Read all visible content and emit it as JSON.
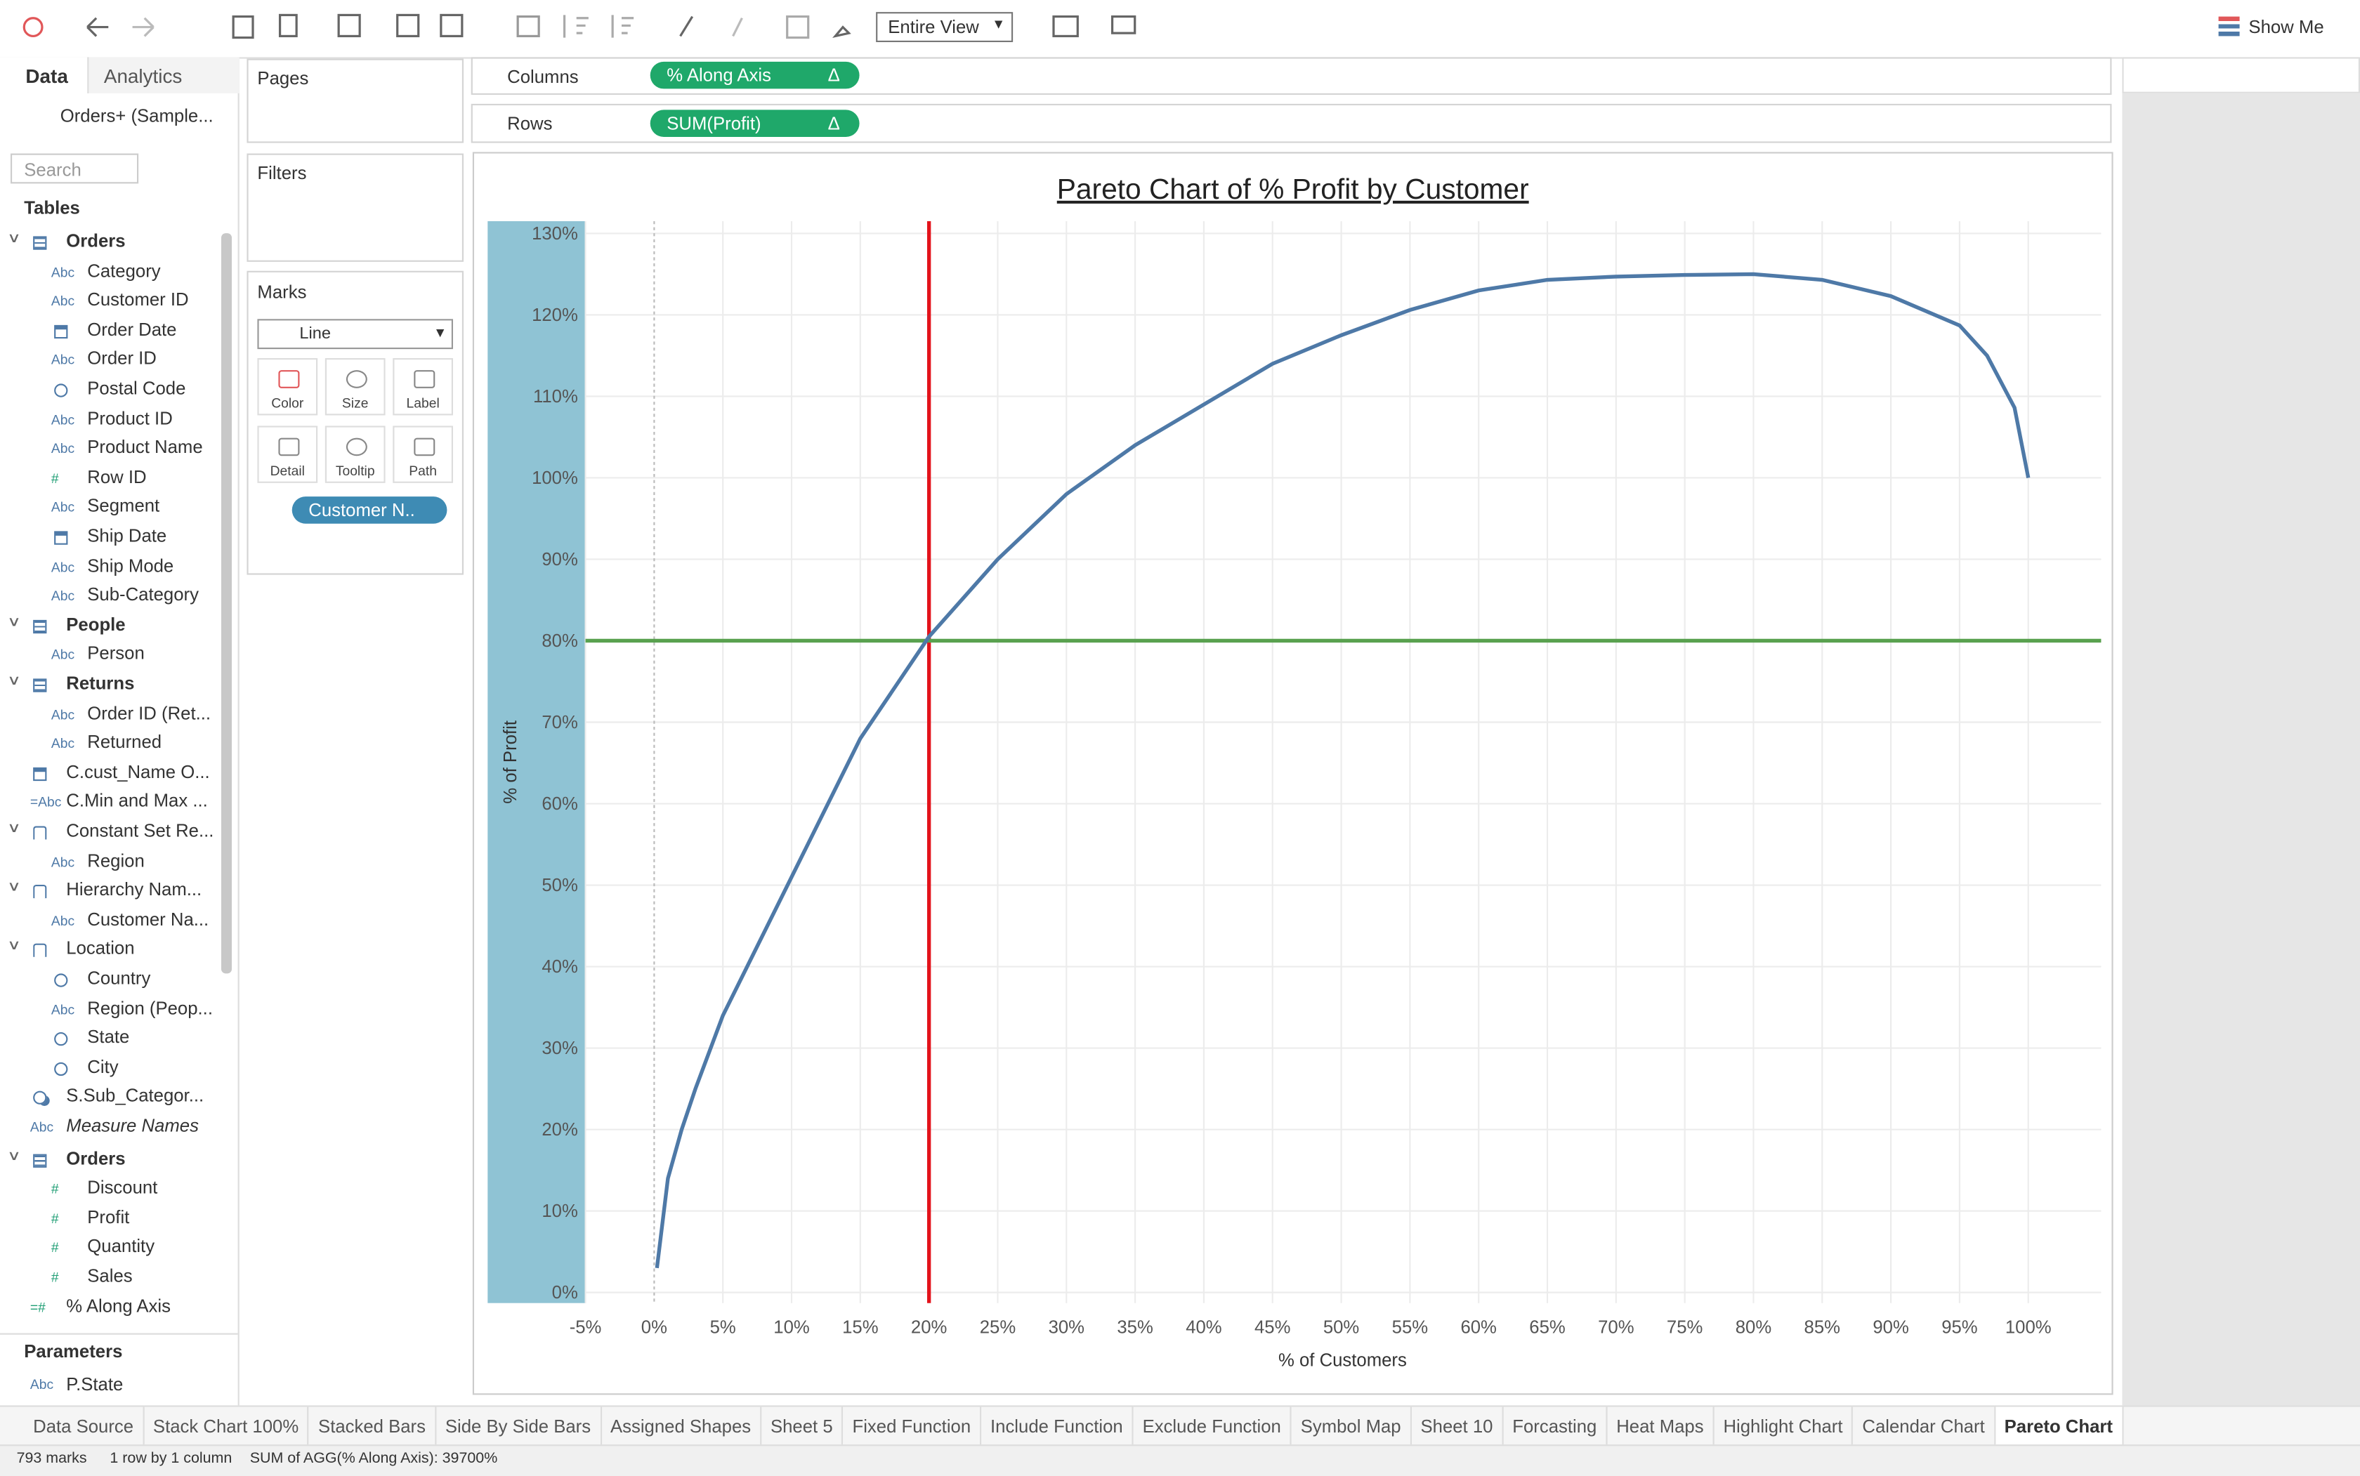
{
  "toolbar": {
    "view": "Entire View",
    "show_me": "Show Me"
  },
  "data_pane": {
    "tabs": [
      "Data",
      "Analytics"
    ],
    "source": "Orders+ (Sample...",
    "search": "Search",
    "tables_heading": "Tables",
    "fields": [
      {
        "label": "Orders",
        "kind": "table",
        "level": 0
      },
      {
        "label": "Category",
        "icon": "Abc",
        "level": 1
      },
      {
        "label": "Customer ID",
        "icon": "Abc",
        "level": 1
      },
      {
        "label": "Order Date",
        "kind": "date",
        "level": 1
      },
      {
        "label": "Order ID",
        "icon": "Abc",
        "level": 1
      },
      {
        "label": "Postal Code",
        "kind": "geo",
        "level": 1
      },
      {
        "label": "Product ID",
        "icon": "Abc",
        "level": 1
      },
      {
        "label": "Product Name",
        "icon": "Abc",
        "level": 1
      },
      {
        "label": "Row ID",
        "icon": "#",
        "level": 1
      },
      {
        "label": "Segment",
        "icon": "Abc",
        "level": 1
      },
      {
        "label": "Ship Date",
        "kind": "date",
        "level": 1
      },
      {
        "label": "Ship Mode",
        "icon": "Abc",
        "level": 1
      },
      {
        "label": "Sub-Category",
        "icon": "Abc",
        "level": 1
      },
      {
        "label": "People",
        "kind": "table",
        "level": 0
      },
      {
        "label": "Person",
        "icon": "Abc",
        "level": 1
      },
      {
        "label": "Returns",
        "kind": "table",
        "level": 0
      },
      {
        "label": "Order ID (Ret...",
        "icon": "Abc",
        "level": 1
      },
      {
        "label": "Returned",
        "icon": "Abc",
        "level": 1
      },
      {
        "label": "C.cust_Name O...",
        "kind": "date",
        "level": 0
      },
      {
        "label": "C.Min and Max ...",
        "icon": "=Abc",
        "level": 0
      },
      {
        "label": "Constant Set Re...",
        "kind": "hier",
        "level": 0
      },
      {
        "label": "Region",
        "icon": "Abc",
        "level": 1
      },
      {
        "label": "Hierarchy Nam...",
        "kind": "hier",
        "level": 0
      },
      {
        "label": "Customer Na...",
        "icon": "Abc",
        "level": 1
      },
      {
        "label": "Location",
        "kind": "hier",
        "level": 0
      },
      {
        "label": "Country",
        "kind": "geo",
        "level": 1
      },
      {
        "label": "Region (Peop...",
        "icon": "Abc",
        "level": 1
      },
      {
        "label": "State",
        "kind": "geo",
        "level": 1
      },
      {
        "label": "City",
        "kind": "geo",
        "level": 1
      },
      {
        "label": "S.Sub_Categor...",
        "kind": "set",
        "level": 0
      },
      {
        "label": "Measure Names",
        "icon": "Abc",
        "level": 0,
        "italic": true
      },
      {
        "label": "Orders",
        "kind": "table",
        "level": 0
      },
      {
        "label": "Discount",
        "icon": "#",
        "level": 1
      },
      {
        "label": "Profit",
        "icon": "#",
        "level": 1
      },
      {
        "label": "Quantity",
        "icon": "#",
        "level": 1
      },
      {
        "label": "Sales",
        "icon": "#",
        "level": 1
      },
      {
        "label": "% Along Axis",
        "icon": "=#",
        "level": 0
      }
    ],
    "parameters_heading": "Parameters",
    "parameters": [
      {
        "label": "P.State",
        "icon": "Abc"
      }
    ]
  },
  "shelves": {
    "pages": "Pages",
    "filters": "Filters",
    "columns": "Columns",
    "columns_pill": "% Along Axis",
    "rows": "Rows",
    "rows_pill": "SUM(Profit)",
    "delta": "Δ"
  },
  "marks": {
    "title": "Marks",
    "type": "Line",
    "buttons": [
      "Color",
      "Size",
      "Label",
      "Detail",
      "Tooltip",
      "Path"
    ],
    "pill": "Customer N.."
  },
  "chart_data": {
    "type": "line",
    "title": "Pareto Chart of % Profit by Customer",
    "x_label": "% of Customers",
    "y_label": "% of Profit",
    "x": [
      0.2,
      1,
      2,
      3,
      5,
      10,
      15,
      20,
      25,
      30,
      35,
      40,
      45,
      50,
      55,
      60,
      65,
      70,
      75,
      80,
      85,
      90,
      95,
      97,
      99,
      100
    ],
    "values": [
      3,
      14,
      20,
      25,
      34,
      51,
      68,
      80.5,
      90,
      98,
      104,
      109,
      114,
      117.5,
      120.6,
      123,
      124.3,
      124.7,
      124.9,
      125,
      124.3,
      122.3,
      118.7,
      115,
      108.6,
      100
    ],
    "color": "#4e79a7",
    "xlim": [
      -5,
      105.3
    ],
    "ylim": [
      -1.3,
      131.5
    ],
    "xticks": [
      {
        "value": -5,
        "label": "-5%"
      },
      {
        "value": 0,
        "label": "0%"
      },
      {
        "value": 5,
        "label": "5%"
      },
      {
        "value": 10,
        "label": "10%"
      },
      {
        "value": 15,
        "label": "15%"
      },
      {
        "value": 20,
        "label": "20%"
      },
      {
        "value": 25,
        "label": "25%"
      },
      {
        "value": 30,
        "label": "30%"
      },
      {
        "value": 35,
        "label": "35%"
      },
      {
        "value": 40,
        "label": "40%"
      },
      {
        "value": 45,
        "label": "45%"
      },
      {
        "value": 50,
        "label": "50%"
      },
      {
        "value": 55,
        "label": "55%"
      },
      {
        "value": 60,
        "label": "60%"
      },
      {
        "value": 65,
        "label": "65%"
      },
      {
        "value": 70,
        "label": "70%"
      },
      {
        "value": 75,
        "label": "75%"
      },
      {
        "value": 80,
        "label": "80%"
      },
      {
        "value": 85,
        "label": "85%"
      },
      {
        "value": 90,
        "label": "90%"
      },
      {
        "value": 95,
        "label": "95%"
      },
      {
        "value": 100,
        "label": "100%"
      }
    ],
    "yticks": [
      {
        "value": 0,
        "label": "0%"
      },
      {
        "value": 10,
        "label": "10%"
      },
      {
        "value": 20,
        "label": "20%"
      },
      {
        "value": 30,
        "label": "30%"
      },
      {
        "value": 40,
        "label": "40%"
      },
      {
        "value": 50,
        "label": "50%"
      },
      {
        "value": 60,
        "label": "60%"
      },
      {
        "value": 70,
        "label": "70%"
      },
      {
        "value": 80,
        "label": "80%"
      },
      {
        "value": 90,
        "label": "90%"
      },
      {
        "value": 100,
        "label": "100%"
      },
      {
        "value": 110,
        "label": "110%"
      },
      {
        "value": 120,
        "label": "120%"
      },
      {
        "value": 130,
        "label": "130%"
      }
    ],
    "grid": true,
    "reference_lines": [
      {
        "axis": "x",
        "value": 20,
        "color": "#e3131b"
      },
      {
        "axis": "y",
        "value": 80,
        "color": "#59a14f"
      }
    ]
  },
  "tabs": {
    "data_source": "Data Source",
    "sheets": [
      "Stack Chart 100%",
      "Stacked Bars",
      "Side By Side Bars",
      "Assigned Shapes",
      "Sheet 5",
      "Fixed Function",
      "Include Function",
      "Exclude Function",
      "Symbol Map",
      "Sheet 10",
      "Forcasting",
      "Heat Maps",
      "Highlight Chart",
      "Calendar Chart",
      "Pareto Chart"
    ],
    "active": 14
  },
  "status": [
    "793 marks",
    "1 row by 1 column",
    "SUM of AGG(% Along Axis): 39700%"
  ]
}
